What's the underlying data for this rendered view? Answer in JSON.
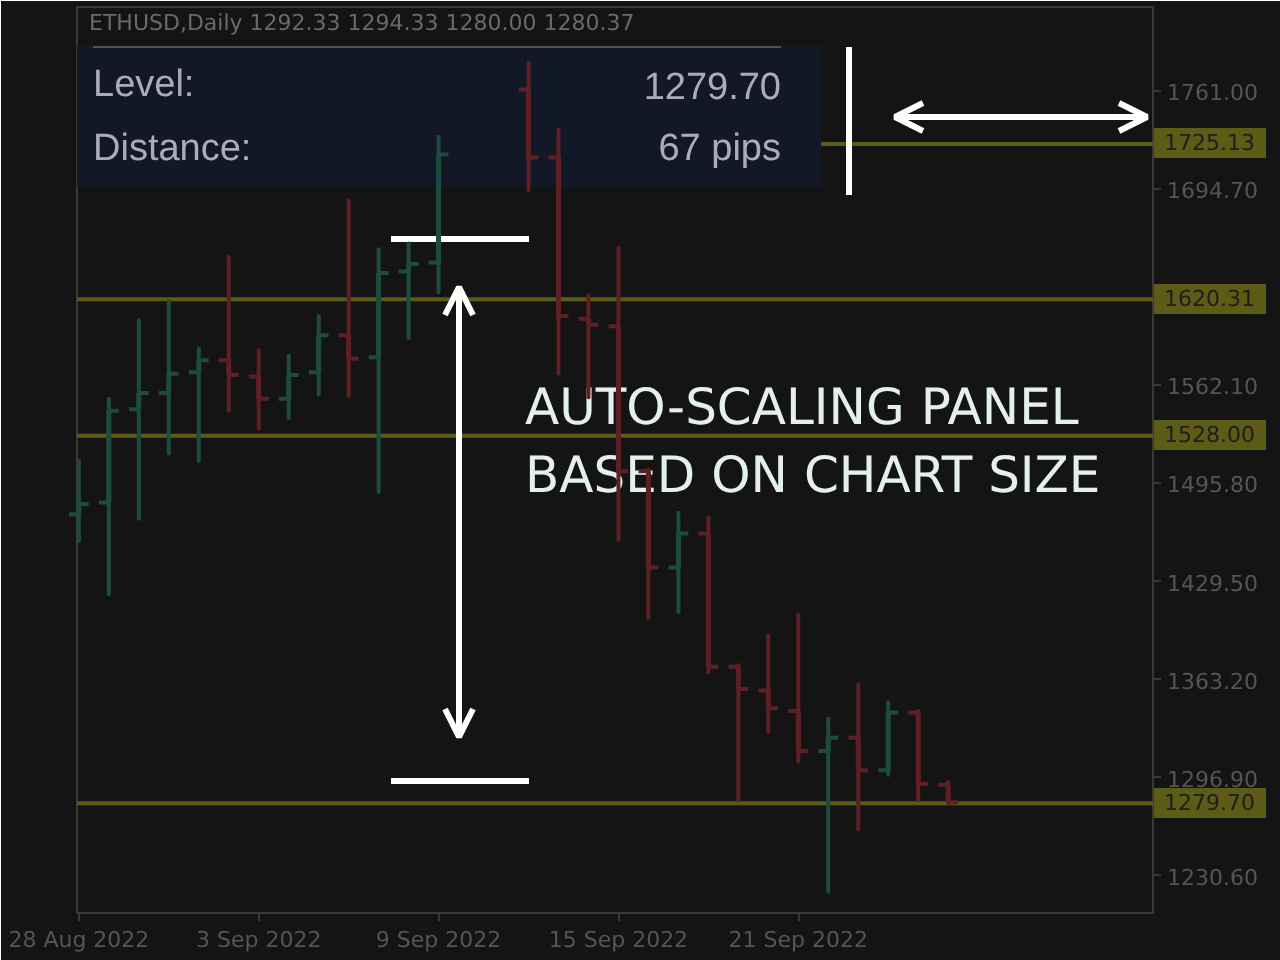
{
  "chart_data": {
    "type": "candlestick",
    "title": "ETHUSD,Daily 1292.33 1294.33 1280.00 1280.37",
    "x": [
      "2022-08-28",
      "2022-08-29",
      "2022-08-30",
      "2022-08-31",
      "2022-09-01",
      "2022-09-02",
      "2022-09-03",
      "2022-09-04",
      "2022-09-05",
      "2022-09-06",
      "2022-09-07",
      "2022-09-08",
      "2022-09-09",
      "2022-09-12",
      "2022-09-13",
      "2022-09-14",
      "2022-09-15",
      "2022-09-16",
      "2022-09-17",
      "2022-09-18",
      "2022-09-19",
      "2022-09-20",
      "2022-09-21",
      "2022-09-22",
      "2022-09-23",
      "2022-09-24",
      "2022-09-25",
      "2022-09-26"
    ],
    "ohlc": [
      [
        1475,
        1511,
        1457,
        1482
      ],
      [
        1483,
        1553,
        1421,
        1545
      ],
      [
        1546,
        1606,
        1472,
        1557
      ],
      [
        1557,
        1619,
        1516,
        1570
      ],
      [
        1571,
        1587,
        1511,
        1579
      ],
      [
        1579,
        1649,
        1545,
        1569
      ],
      [
        1568,
        1586,
        1533,
        1553
      ],
      [
        1553,
        1582,
        1540,
        1569
      ],
      [
        1571,
        1609,
        1556,
        1596
      ],
      [
        1596,
        1687,
        1555,
        1580
      ],
      [
        1581,
        1654,
        1490,
        1638
      ],
      [
        1639,
        1658,
        1594,
        1644
      ],
      [
        1645,
        1730,
        1625,
        1718
      ],
      [
        1762,
        1780,
        1694,
        1716
      ],
      [
        1716,
        1735,
        1570,
        1609
      ],
      [
        1607,
        1623,
        1554,
        1603
      ],
      [
        1602,
        1655,
        1458,
        1504
      ],
      [
        1504,
        1505,
        1405,
        1439
      ],
      [
        1439,
        1476,
        1409,
        1462
      ],
      [
        1462,
        1473,
        1368,
        1372
      ],
      [
        1372,
        1373,
        1282,
        1357
      ],
      [
        1356,
        1393,
        1328,
        1344
      ],
      [
        1342,
        1407,
        1308,
        1315
      ],
      [
        1315,
        1337,
        1220,
        1324
      ],
      [
        1324,
        1360,
        1262,
        1302
      ],
      [
        1302,
        1348,
        1299,
        1341
      ],
      [
        1341,
        1342,
        1282,
        1293
      ],
      [
        1292.33,
        1294.33,
        1280.0,
        1280.37
      ]
    ],
    "colors": [
      "#1e4b3f",
      "#1e4b3f",
      "#1e4b3f",
      "#1e4b3f",
      "#1e4b3f",
      "#5e2024",
      "#5e2024",
      "#1e4b3f",
      "#1e4b3f",
      "#5e2024",
      "#1e4b3f",
      "#1e4b3f",
      "#1e4b3f",
      "#5e2024",
      "#5e2024",
      "#5e2024",
      "#5e2024",
      "#5e2024",
      "#1e4b3f",
      "#5e2024",
      "#5e2024",
      "#5e2024",
      "#5e2024",
      "#1e4b3f",
      "#5e2024",
      "#1e4b3f",
      "#5e2024",
      "#5e2024"
    ],
    "xlim": [
      "2022-08-27T22:30",
      "2022-10-02T20:00"
    ],
    "ylim": [
      1205.6,
      1817.7
    ],
    "xticks": [
      {
        "value": "2022-08-28",
        "label": "28 Aug 2022"
      },
      {
        "value": "2022-09-03",
        "label": "3 Sep 2022"
      },
      {
        "value": "2022-09-09",
        "label": "9 Sep 2022"
      },
      {
        "value": "2022-09-15",
        "label": "15 Sep 2022"
      },
      {
        "value": "2022-09-21",
        "label": "21 Sep 2022"
      }
    ],
    "yticks": [
      {
        "value": 1761.0,
        "label": "1761.00"
      },
      {
        "value": 1694.7,
        "label": "1694.70"
      },
      {
        "value": 1562.1,
        "label": "1562.10"
      },
      {
        "value": 1495.8,
        "label": "1495.80"
      },
      {
        "value": 1429.5,
        "label": "1429.50"
      },
      {
        "value": 1363.2,
        "label": "1363.20"
      },
      {
        "value": 1296.9,
        "label": "1296.90"
      },
      {
        "value": 1230.6,
        "label": "1230.60"
      }
    ],
    "ref_lines": [
      {
        "axis": "y",
        "value": 1725.13,
        "label": "1725.13",
        "color": "#5c5c16"
      },
      {
        "axis": "y",
        "value": 1620.31,
        "label": "1620.31",
        "color": "#5c5c16"
      },
      {
        "axis": "y",
        "value": 1528.0,
        "label": "1528.00",
        "color": "#5c5c16"
      },
      {
        "axis": "y",
        "value": 1279.7,
        "label": "1279.70",
        "color": "#5c5c16"
      }
    ],
    "annotations": [
      "Level:",
      "1279.70",
      "Distance:",
      "67 pips",
      "AUTO-SCALING PANEL",
      "BASED ON CHART SIZE"
    ]
  }
}
